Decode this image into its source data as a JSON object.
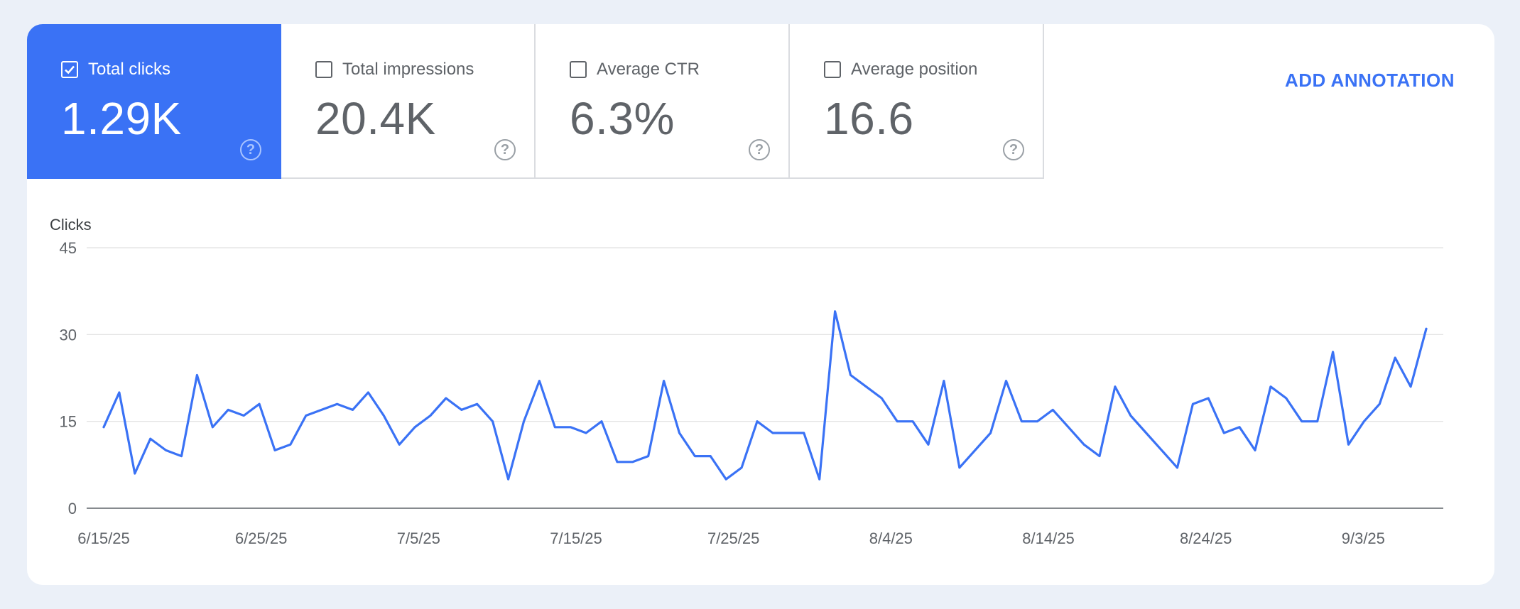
{
  "metrics": [
    {
      "label": "Total clicks",
      "value": "1.29K",
      "selected": true
    },
    {
      "label": "Total impressions",
      "value": "20.4K",
      "selected": false
    },
    {
      "label": "Average CTR",
      "value": "6.3%",
      "selected": false
    },
    {
      "label": "Average position",
      "value": "16.6",
      "selected": false
    }
  ],
  "actions": {
    "add_annotation": "ADD ANNOTATION"
  },
  "icons": {
    "help": "help-circle-icon",
    "checkbox": "checkbox-icon"
  },
  "colors": {
    "accent": "#3a72f5",
    "line": "#3a72f5",
    "grid": "#e0e0e0"
  },
  "chart_data": {
    "type": "line",
    "ylabel": "Clicks",
    "ylim": [
      0,
      45
    ],
    "yticks": [
      0,
      15,
      30,
      45
    ],
    "x_tick_labels": [
      "6/15/25",
      "6/25/25",
      "7/5/25",
      "7/15/25",
      "7/25/25",
      "8/4/25",
      "8/14/25",
      "8/24/25",
      "9/3/25"
    ],
    "x_start": "6/15/25",
    "x_end": "9/7/25",
    "series": [
      {
        "values": [
          14,
          20,
          6,
          12,
          10,
          9,
          23,
          14,
          17,
          16,
          18,
          10,
          11,
          16,
          17,
          18,
          17,
          20,
          16,
          11,
          14,
          16,
          19,
          17,
          18,
          15,
          5,
          15,
          22,
          14,
          14,
          13,
          15,
          8,
          8,
          9,
          22,
          13,
          9,
          9,
          5,
          7,
          15,
          13,
          13,
          13,
          5,
          34,
          23,
          21,
          19,
          15,
          15,
          11,
          22,
          7,
          10,
          13,
          22,
          15,
          15,
          17,
          14,
          11,
          9,
          21,
          16,
          13,
          10,
          7,
          18,
          19,
          13,
          14,
          10,
          21,
          19,
          15,
          15,
          27,
          11,
          15,
          18,
          26,
          21,
          31
        ]
      }
    ]
  }
}
